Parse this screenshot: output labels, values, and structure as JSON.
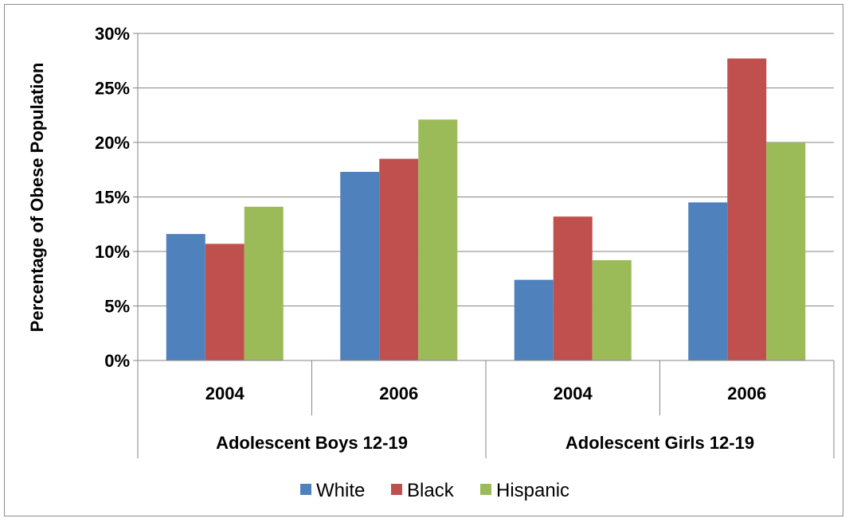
{
  "chart_data": {
    "type": "bar",
    "groups": [
      {
        "label": "Adolescent Boys 12-19",
        "categories": [
          "2004",
          "2006"
        ]
      },
      {
        "label": "Adolescent Girls 12-19",
        "categories": [
          "2004",
          "2006"
        ]
      }
    ],
    "categories": [
      "2004",
      "2006",
      "2004",
      "2006"
    ],
    "series": [
      {
        "name": "White",
        "color": "#4f81bd",
        "values": [
          11.6,
          17.3,
          7.4,
          14.5
        ]
      },
      {
        "name": "Black",
        "color": "#c0504d",
        "values": [
          10.7,
          18.5,
          13.2,
          27.7
        ]
      },
      {
        "name": "Hispanic",
        "color": "#9bbb59",
        "values": [
          14.1,
          22.1,
          9.2,
          20.0
        ]
      }
    ],
    "ylabel": "Percentage of Obese Population",
    "xlabel": "",
    "ylim": [
      0,
      30
    ],
    "yticks": [
      0,
      5,
      10,
      15,
      20,
      25,
      30
    ],
    "ytick_labels": [
      "0%",
      "5%",
      "10%",
      "15%",
      "20%",
      "25%",
      "30%"
    ],
    "grid": true,
    "legend_position": "bottom"
  }
}
